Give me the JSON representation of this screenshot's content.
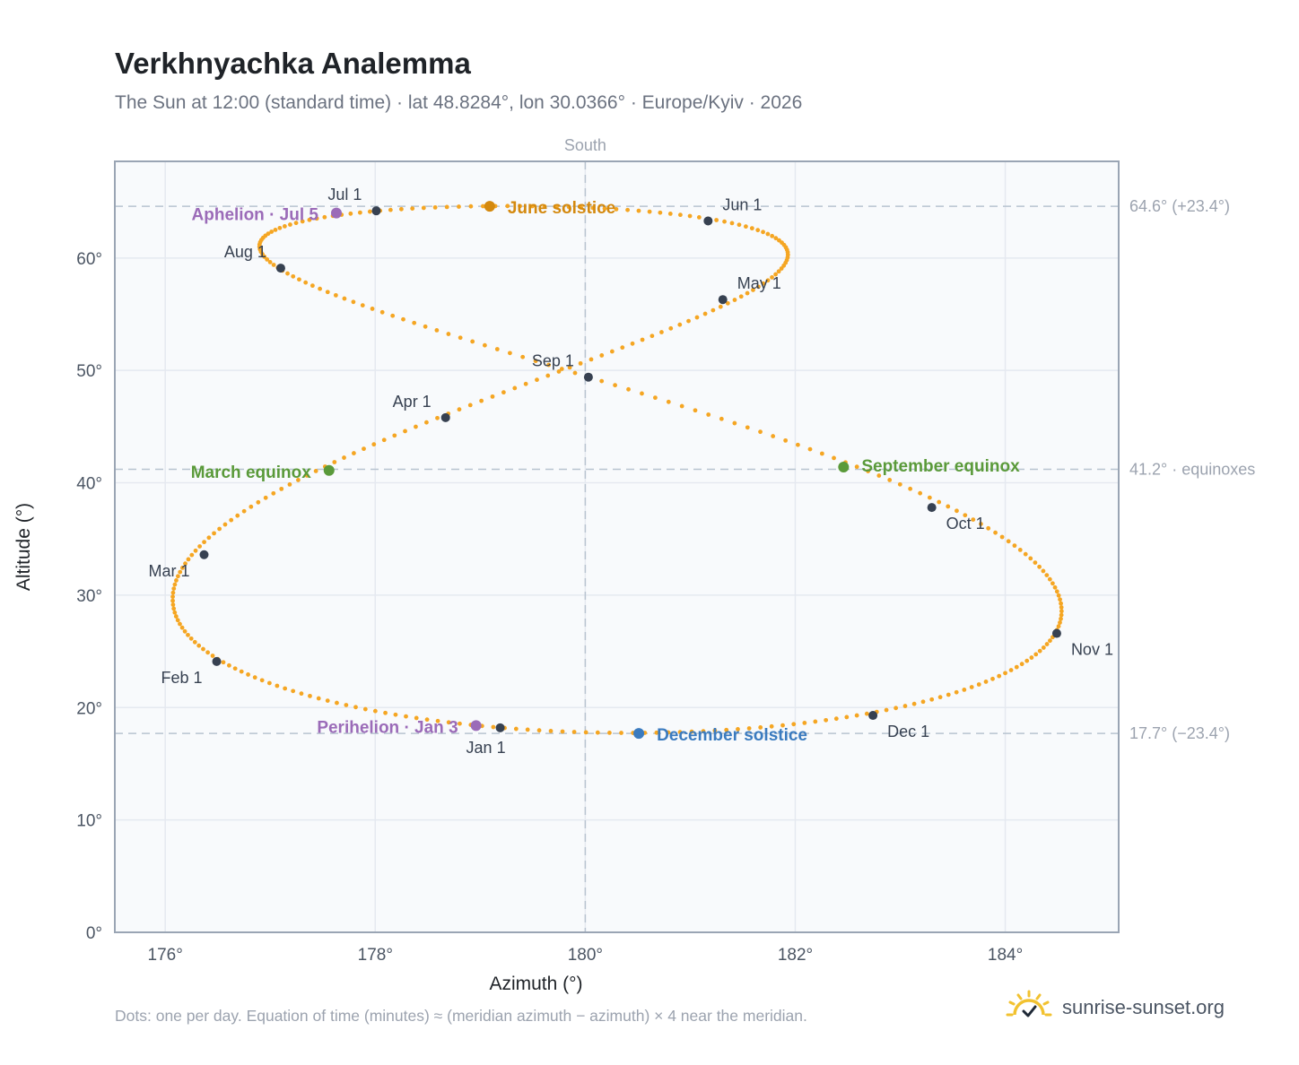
{
  "title": "Verkhnyachka Analemma",
  "subtitle": "The Sun at 12:00 (standard time) · lat 48.8284°, lon 30.0366° · Europe/Kyiv · 2026",
  "footnote": "Dots: one per day. Equation of time (minutes) ≈ (meridian azimuth − azimuth) × 4 near the meridian.",
  "brand": {
    "name": "sunrise-sunset.org",
    "icon": "sun-check-icon"
  },
  "colors": {
    "path": "#f5a623",
    "month_marker": "#374151",
    "solstice_june": "#d4890e",
    "solstice_december": "#3b7bbf",
    "equinox": "#5a9a3a",
    "apsis": "#9b6bb8",
    "plot_bg": "#f8fafc",
    "grid": "#e5e9f0",
    "reference_line": "#b8c4d0"
  },
  "chart_data": {
    "type": "scatter",
    "xlabel": "Azimuth (°)",
    "ylabel": "Altitude (°)",
    "xlim": [
      175.52,
      185.08
    ],
    "ylim": [
      0,
      68.6
    ],
    "x_ticks": [
      176,
      178,
      180,
      182,
      184
    ],
    "x_tick_labels": [
      "176°",
      "178°",
      "180°",
      "182°",
      "184°"
    ],
    "y_ticks": [
      0,
      10,
      20,
      30,
      40,
      50,
      60
    ],
    "y_tick_labels": [
      "0°",
      "10°",
      "20°",
      "30°",
      "40°",
      "50°",
      "60°"
    ],
    "grid": true,
    "meridian": {
      "azimuth": 180,
      "label": "South"
    },
    "reference_lines": [
      {
        "altitude": 64.6,
        "label": "64.6° (+23.4°)"
      },
      {
        "altitude": 41.2,
        "label": "41.2° · equinoxes"
      },
      {
        "altitude": 17.7,
        "label": "17.7° (−23.4°)"
      }
    ],
    "latitude": 48.8284,
    "longitude": 30.0366,
    "utc_offset_hours": 2,
    "year": 2026,
    "points_per": "day",
    "month_markers": [
      {
        "label": "Jan 1",
        "az": 179.19,
        "alt": 18.2
      },
      {
        "label": "Feb 1",
        "az": 176.49,
        "alt": 24.1
      },
      {
        "label": "Mar 1",
        "az": 176.37,
        "alt": 33.6
      },
      {
        "label": "Apr 1",
        "az": 178.67,
        "alt": 45.8
      },
      {
        "label": "May 1",
        "az": 181.31,
        "alt": 56.3
      },
      {
        "label": "Jun 1",
        "az": 181.17,
        "alt": 63.3
      },
      {
        "label": "Jul 1",
        "az": 178.01,
        "alt": 64.2
      },
      {
        "label": "Aug 1",
        "az": 177.1,
        "alt": 59.1
      },
      {
        "label": "Sep 1",
        "az": 180.03,
        "alt": 49.4
      },
      {
        "label": "Oct 1",
        "az": 183.3,
        "alt": 37.8
      },
      {
        "label": "Nov 1",
        "az": 184.49,
        "alt": 26.6
      },
      {
        "label": "Dec 1",
        "az": 182.74,
        "alt": 19.3
      }
    ],
    "events": [
      {
        "label": "June solstice",
        "az": 179.09,
        "alt": 64.6,
        "kind": "solstice_june"
      },
      {
        "label": "December solstice",
        "az": 180.51,
        "alt": 17.7,
        "kind": "solstice_december"
      },
      {
        "label": "March equinox",
        "az": 177.56,
        "alt": 41.1,
        "kind": "equinox"
      },
      {
        "label": "September equinox",
        "az": 182.46,
        "alt": 41.4,
        "kind": "equinox"
      },
      {
        "label": "Aphelion · Jul 5",
        "az": 177.63,
        "alt": 64.0,
        "kind": "apsis"
      },
      {
        "label": "Perihelion · Jan 3",
        "az": 178.96,
        "alt": 18.4,
        "kind": "apsis"
      }
    ]
  }
}
